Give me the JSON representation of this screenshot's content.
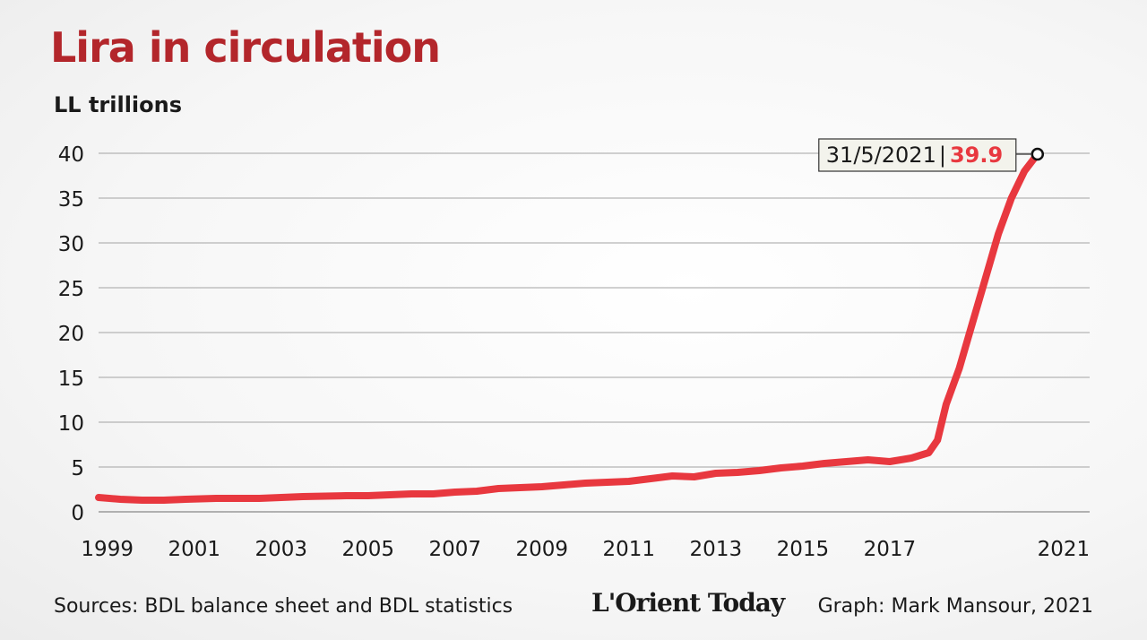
{
  "header": {
    "title": "Lira in circulation",
    "unit_label": "LL trillions"
  },
  "chart_data": {
    "type": "line",
    "title": "Lira in circulation",
    "ylabel": "LL trillions",
    "xlabel": "",
    "ylim": [
      0,
      40
    ],
    "xlim": [
      1998.8,
      2021.6
    ],
    "y_ticks": [
      "0",
      "5",
      "10",
      "15",
      "20",
      "25",
      "30",
      "35",
      "40"
    ],
    "x_ticks": [
      "1999",
      "2001",
      "2003",
      "2005",
      "2007",
      "2009",
      "2011",
      "2013",
      "2015",
      "2017",
      "2021"
    ],
    "grid": true,
    "line_color": "#e8383f",
    "series": [
      {
        "x": [
          1998.8,
          1999.3,
          1999.8,
          2000.3,
          2000.8,
          2001.5,
          2002.5,
          2003.5,
          2004.5,
          2005.0,
          2005.5,
          2006.0,
          2006.5,
          2007.0,
          2007.5,
          2008.0,
          2008.5,
          2009.0,
          2009.5,
          2010.0,
          2010.5,
          2011.0,
          2011.5,
          2012.0,
          2012.5,
          2013.0,
          2013.5,
          2014.0,
          2014.5,
          2015.0,
          2015.5,
          2016.0,
          2016.5,
          2017.0,
          2017.5,
          2017.9,
          2018.1,
          2018.3,
          2018.6,
          2018.9,
          2019.2,
          2019.5,
          2019.8,
          2020.1,
          2020.4
        ],
        "y": [
          1.6,
          1.4,
          1.3,
          1.3,
          1.4,
          1.5,
          1.5,
          1.7,
          1.8,
          1.8,
          1.9,
          2.0,
          2.0,
          2.2,
          2.3,
          2.6,
          2.7,
          2.8,
          3.0,
          3.2,
          3.3,
          3.4,
          3.7,
          4.0,
          3.9,
          4.3,
          4.4,
          4.6,
          4.9,
          5.1,
          5.4,
          5.6,
          5.8,
          5.6,
          6.0,
          6.6,
          8.0,
          12.0,
          16.0,
          21.0,
          26.0,
          31.0,
          35.0,
          38.0,
          39.9
        ]
      }
    ],
    "annotation": {
      "date": "31/5/2021",
      "separator": "|",
      "value": "39.9",
      "value_color": "#e8383f"
    }
  },
  "footer": {
    "source": "Sources: BDL balance sheet and BDL statistics",
    "logo": "L'Orient Today",
    "credit": "Graph: Mark Mansour, 2021"
  }
}
